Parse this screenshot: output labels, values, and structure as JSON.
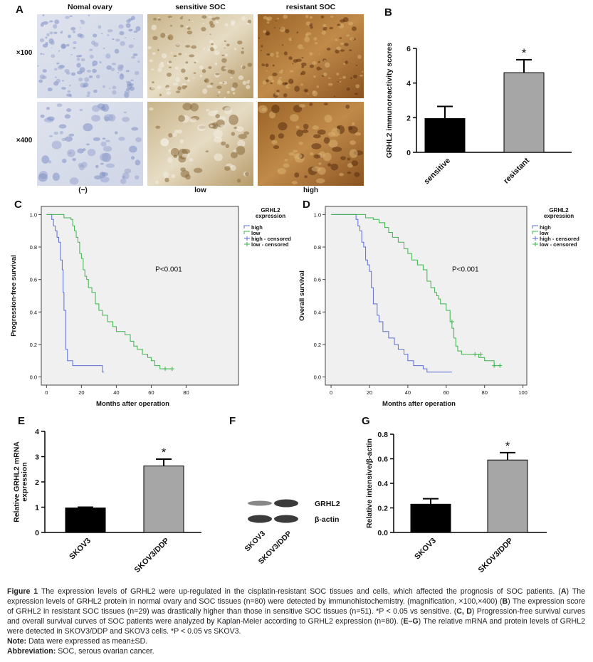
{
  "panel_labels": [
    "A",
    "B",
    "C",
    "D",
    "E",
    "F",
    "G"
  ],
  "ihc": {
    "columns": [
      "Nomal ovary",
      "sensitive SOC",
      "resistant SOC"
    ],
    "rows": [
      "×100",
      "×400"
    ],
    "scores": [
      "(−)",
      "low",
      "high"
    ]
  },
  "western": {
    "bands": [
      "GRHL2",
      "β-actin"
    ],
    "lanes": [
      "SKOV3",
      "SKOV3/DDP"
    ]
  },
  "chart_data": [
    {
      "type": "bar",
      "categories": [
        "sensitive",
        "resistant"
      ],
      "values": [
        1.95,
        4.6
      ],
      "errors": [
        0.7,
        0.75
      ],
      "colors": [
        "#000000",
        "#a6a6a6"
      ],
      "markers": [
        null,
        "*"
      ],
      "ylim": [
        0,
        6
      ],
      "yticks": [
        0,
        2,
        4,
        6
      ],
      "ylabel": [
        "GRHL2 immunoreactivity scores"
      ]
    },
    {
      "type": "step",
      "xlabel": "Months after operation",
      "ylabel": "Progression-free survival",
      "xlim": [
        -3,
        110
      ],
      "xticks": [
        0,
        20,
        40,
        60,
        80
      ],
      "ylim": [
        -0.05,
        1.05
      ],
      "yticks": [
        {
          "value": 0,
          "label": "0.0"
        },
        0.2,
        0.4,
        0.6,
        0.8,
        {
          "value": 1,
          "label": "1.0"
        }
      ],
      "legend_title": [
        "GRHL2",
        "expression"
      ],
      "annotation": "P<0.001",
      "series": [
        {
          "name": "high",
          "color": "#5a6ed4",
          "x": [
            0,
            3,
            4,
            5,
            6,
            7,
            8,
            9,
            9.5,
            10,
            11,
            12,
            15,
            32,
            33
          ],
          "values": [
            1,
            0.97,
            0.93,
            0.9,
            0.86,
            0.83,
            0.72,
            0.66,
            0.52,
            0.41,
            0.17,
            0.1,
            0.07,
            0.03,
            0.03
          ],
          "censored": {
            "name": "high - censored",
            "x": [],
            "values": []
          }
        },
        {
          "name": "low",
          "color": "#3cb44b",
          "x": [
            0,
            8,
            10,
            14,
            15,
            16,
            17,
            18,
            19,
            20,
            21,
            22,
            23,
            24,
            26,
            28,
            30,
            32,
            35,
            38,
            40,
            45,
            48,
            50,
            52,
            55,
            58,
            60,
            62,
            65,
            72
          ],
          "values": [
            1,
            1,
            0.98,
            0.97,
            0.93,
            0.9,
            0.86,
            0.83,
            0.76,
            0.73,
            0.66,
            0.62,
            0.6,
            0.55,
            0.52,
            0.45,
            0.41,
            0.38,
            0.34,
            0.31,
            0.28,
            0.26,
            0.22,
            0.19,
            0.17,
            0.14,
            0.12,
            0.1,
            0.07,
            0.05,
            0.05
          ],
          "censored": {
            "name": "low - censored",
            "x": [
              68,
              72
            ],
            "values": [
              0.05,
              0.05
            ]
          }
        }
      ]
    },
    {
      "type": "step",
      "xlabel": "Months after operation",
      "ylabel": "Overall survival",
      "xlim": [
        -3,
        102
      ],
      "xticks": [
        0,
        20,
        40,
        60,
        80,
        100
      ],
      "ylim": [
        -0.05,
        1.05
      ],
      "yticks": [
        {
          "value": 0,
          "label": "0.0"
        },
        0.2,
        0.4,
        0.6,
        0.8,
        {
          "value": 1,
          "label": "1.0"
        }
      ],
      "legend_title": [
        "GRHL2",
        "expression"
      ],
      "annotation": "P<0.001",
      "series": [
        {
          "name": "high",
          "color": "#5a6ed4",
          "x": [
            0,
            12,
            13,
            14,
            15,
            16,
            17,
            18,
            19,
            20,
            21,
            22,
            24,
            25,
            27,
            30,
            33,
            35,
            38,
            40,
            43,
            48,
            50,
            63
          ],
          "values": [
            1,
            1,
            0.97,
            0.93,
            0.9,
            0.83,
            0.8,
            0.72,
            0.69,
            0.65,
            0.55,
            0.45,
            0.38,
            0.34,
            0.28,
            0.24,
            0.2,
            0.17,
            0.14,
            0.1,
            0.07,
            0.05,
            0.03,
            0.03
          ],
          "censored": {
            "name": "high - censored",
            "x": [],
            "values": []
          }
        },
        {
          "name": "low",
          "color": "#3cb44b",
          "x": [
            0,
            17,
            18,
            22,
            25,
            28,
            30,
            32,
            35,
            38,
            40,
            42,
            45,
            48,
            50,
            52,
            54,
            55,
            56,
            57,
            60,
            62,
            63,
            64,
            65,
            66,
            68,
            75,
            77,
            80,
            85,
            88
          ],
          "values": [
            1,
            1,
            0.98,
            0.97,
            0.95,
            0.92,
            0.89,
            0.86,
            0.83,
            0.79,
            0.76,
            0.72,
            0.69,
            0.66,
            0.59,
            0.55,
            0.52,
            0.5,
            0.48,
            0.45,
            0.41,
            0.34,
            0.3,
            0.24,
            0.19,
            0.16,
            0.14,
            0.14,
            0.12,
            0.1,
            0.07,
            0.07
          ],
          "censored": {
            "name": "low - censored",
            "x": [
              63,
              75,
              78,
              85,
              88
            ],
            "values": [
              0.34,
              0.14,
              0.14,
              0.07,
              0.07
            ]
          }
        }
      ]
    },
    {
      "type": "bar",
      "categories": [
        "SKOV3",
        "SKOV3/DDP"
      ],
      "values": [
        0.97,
        2.63
      ],
      "errors": [
        0.03,
        0.27
      ],
      "colors": [
        "#000000",
        "#a6a6a6"
      ],
      "markers": [
        null,
        "*"
      ],
      "ylim": [
        0,
        4
      ],
      "yticks": [
        0,
        1,
        2,
        3,
        4
      ],
      "ylabel": [
        "Relative GRHL2 mRNA",
        "expression"
      ]
    },
    {
      "type": "bar",
      "categories": [
        "SKOV3",
        "SKOV3/DDP"
      ],
      "values": [
        0.23,
        0.59
      ],
      "errors": [
        0.045,
        0.06
      ],
      "colors": [
        "#000000",
        "#a6a6a6"
      ],
      "markers": [
        null,
        "*"
      ],
      "ylim": [
        0,
        0.8
      ],
      "yticks": [
        {
          "value": 0,
          "label": "0.0"
        },
        0.2,
        0.4,
        0.6,
        0.8
      ],
      "ylabel": [
        "Relative intensive/β-actin"
      ]
    }
  ],
  "caption": {
    "segments": [
      {
        "text": "Figure 1",
        "bold": true
      },
      {
        "text": " The expression levels of GRHL2 were up-regulated in the cisplatin-resistant SOC tissues and cells, which affected the prognosis of SOC patients. (",
        "bold": false
      },
      {
        "text": "A",
        "bold": true
      },
      {
        "text": ") The expression levels of GRHL2 protein in normal ovary and SOC tissues (n=80) were detected by immunohistochemistry. (magnification, ×100,×400) (",
        "bold": false
      },
      {
        "text": "B",
        "bold": true
      },
      {
        "text": ") The expression score of GRHL2 in resistant SOC tissues (n=29) was drastically higher than those in sensitive SOC tissues (n=51). *P < 0.05 vs sensitive. (",
        "bold": false
      },
      {
        "text": "C, D",
        "bold": true
      },
      {
        "text": ") Progression-free survival curves and overall survival curves of SOC patients were analyzed by Kaplan-Meier according to GRHL2 expression (n=80). (",
        "bold": false
      },
      {
        "text": "E–G",
        "bold": true
      },
      {
        "text": ") The relative mRNA and protein levels of GRHL2 were detected in SKOV3/DDP and SKOV3 cells. *P < 0.05 vs SKOV3.",
        "bold": false
      }
    ],
    "note": {
      "label": "Note:",
      "text": " Data were expressed as mean±SD."
    },
    "abbreviation": {
      "label": "Abbreviation:",
      "text": " SOC, serous ovarian cancer."
    }
  }
}
